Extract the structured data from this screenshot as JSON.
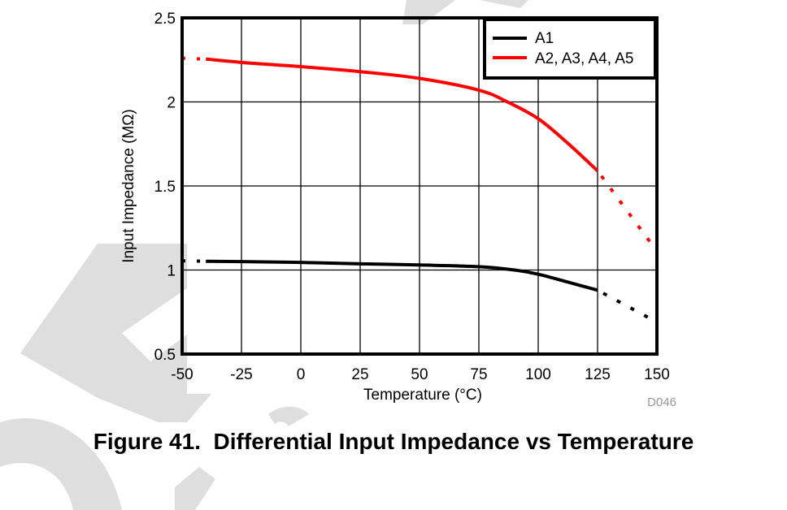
{
  "caption": "Figure 41.  Differential Input Impedance vs Temperature",
  "figure_code": "D046",
  "chart_data": {
    "type": "line",
    "title": "Differential Input Impedance vs Temperature",
    "xlabel": "Temperature (°C)",
    "ylabel": "Input Impedance (MΩ)",
    "xlim": [
      -50,
      150
    ],
    "ylim": [
      0.5,
      2.5
    ],
    "xticks": [
      "-50",
      "-25",
      "0",
      "25",
      "50",
      "75",
      "100",
      "125",
      "150"
    ],
    "yticks": [
      "0.5",
      "1",
      "1.5",
      "2",
      "2.5"
    ],
    "xtick_values": [
      -50,
      -25,
      0,
      25,
      50,
      75,
      100,
      125,
      150
    ],
    "ytick_values": [
      0.5,
      1,
      1.5,
      2,
      2.5
    ],
    "grid": true,
    "legend_position": "top-right",
    "series": [
      {
        "name": "A1",
        "color": "#000000",
        "solid": {
          "x": [
            -40,
            -25,
            0,
            25,
            50,
            75,
            90,
            100,
            112,
            125
          ],
          "y": [
            1.052,
            1.05,
            1.045,
            1.037,
            1.03,
            1.02,
            1.0,
            0.975,
            0.93,
            0.88
          ]
        },
        "dashed_low": {
          "x": [
            -50,
            -40
          ],
          "y": [
            1.055,
            1.052
          ]
        },
        "dashed_high": {
          "x": [
            125,
            150
          ],
          "y": [
            0.88,
            0.69
          ]
        }
      },
      {
        "name": "A2, A3, A4, A5",
        "color": "#ff0000",
        "solid": {
          "x": [
            -40,
            -25,
            -10,
            0,
            25,
            50,
            75,
            87,
            100,
            112,
            125
          ],
          "y": [
            2.255,
            2.235,
            2.22,
            2.21,
            2.18,
            2.14,
            2.07,
            2.0,
            1.9,
            1.76,
            1.59
          ]
        },
        "dashed_low": {
          "x": [
            -50,
            -40
          ],
          "y": [
            2.26,
            2.255
          ]
        },
        "dashed_high": {
          "x": [
            125,
            148
          ],
          "y": [
            1.59,
            1.15
          ]
        }
      }
    ]
  }
}
